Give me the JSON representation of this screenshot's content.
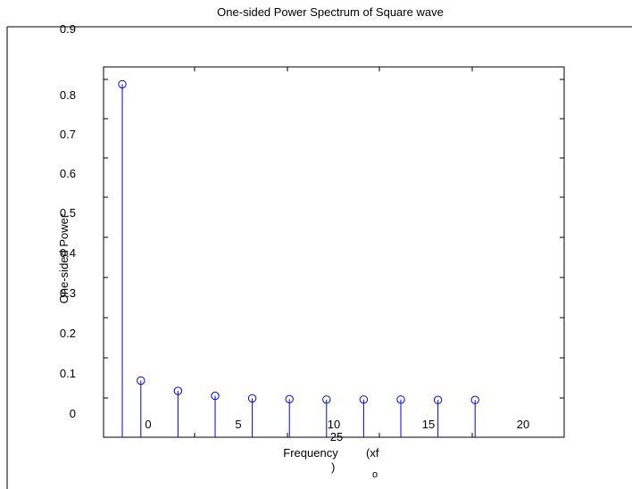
{
  "chart_data": {
    "type": "stem",
    "title": "One-sided  Power  Spectrum  of  Square  wave",
    "ylabel": "One-sided  Power",
    "xlabel": {
      "main": "Frequency",
      "paren_open": "(xf",
      "subscript": "o",
      "paren_close": ")"
    },
    "ylim": [
      -0.05,
      0.8
    ],
    "yticks": [
      0,
      0.1,
      0.2,
      0.3,
      0.4,
      0.5,
      0.6,
      0.7,
      0.8,
      0.9
    ],
    "ytick_labels": [
      "0",
      "0.1",
      "0.2",
      "0.3",
      "0.4",
      "0.5",
      "0.6",
      "0.7",
      "0.8",
      "0.9"
    ],
    "xlim": [
      -2,
      24
    ],
    "xticks": [
      0,
      5,
      10,
      15,
      20,
      25
    ],
    "xtick_labels": [
      "0",
      "5",
      "10",
      "15",
      "20",
      "25"
    ],
    "grid": false,
    "series": [
      {
        "color": "#0000ff",
        "x": [
          0,
          1,
          3,
          5,
          7,
          9,
          11,
          13,
          15,
          17,
          19
        ],
        "values": [
          0.758,
          0.04,
          0.015,
          0.003,
          -0.003,
          -0.005,
          -0.006,
          -0.006,
          -0.006,
          -0.007,
          -0.007
        ]
      }
    ]
  }
}
